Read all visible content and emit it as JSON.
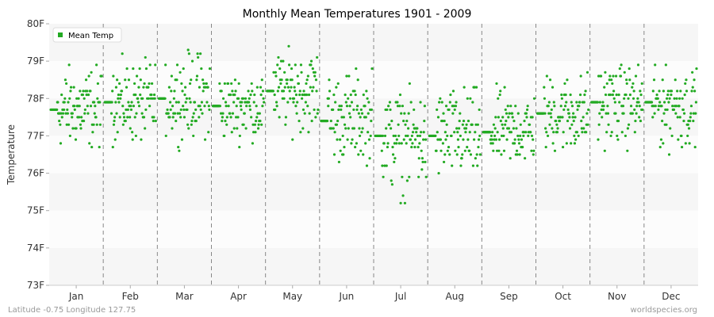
{
  "chart_data": {
    "type": "scatter",
    "title": "Monthly Mean Temperatures 1901 - 2009",
    "ylabel": "Temperature",
    "xlabel": "",
    "categories": [
      "Jan",
      "Feb",
      "Mar",
      "Apr",
      "May",
      "Jun",
      "Jul",
      "Aug",
      "Sep",
      "Oct",
      "Nov",
      "Dec"
    ],
    "y_ticks": [
      {
        "value": 73,
        "label": "73F"
      },
      {
        "value": 74,
        "label": "74F"
      },
      {
        "value": 75,
        "label": "75F"
      },
      {
        "value": 76,
        "label": "76F"
      },
      {
        "value": 77,
        "label": "77F"
      },
      {
        "value": 78,
        "label": "78F"
      },
      {
        "value": 79,
        "label": "79F"
      },
      {
        "value": 80,
        "label": "80F"
      }
    ],
    "ylim": [
      73,
      80
    ],
    "grid": "alternating horizontal bands, dashed month separators",
    "legend": {
      "label": "Mean Temp",
      "placement": "top-left"
    },
    "series": [
      {
        "name": "Mean Temp",
        "color": "#22aa22",
        "n_years": 109,
        "monthly_stats": [
          {
            "month": "Jan",
            "mean": 77.7,
            "min": 76.3,
            "max": 79.3
          },
          {
            "month": "Feb",
            "mean": 77.9,
            "min": 76.3,
            "max": 79.4
          },
          {
            "month": "Mar",
            "mean": 78.0,
            "min": 76.5,
            "max": 79.7
          },
          {
            "month": "Apr",
            "mean": 77.8,
            "min": 76.5,
            "max": 79.0
          },
          {
            "month": "May",
            "mean": 78.2,
            "min": 76.7,
            "max": 79.7
          },
          {
            "month": "Jun",
            "mean": 77.4,
            "min": 75.9,
            "max": 79.3
          },
          {
            "month": "Jul",
            "mean": 77.0,
            "min": 74.8,
            "max": 78.6
          },
          {
            "month": "Aug",
            "mean": 77.0,
            "min": 75.4,
            "max": 78.8
          },
          {
            "month": "Sep",
            "mean": 77.1,
            "min": 75.9,
            "max": 78.7
          },
          {
            "month": "Oct",
            "mean": 77.6,
            "min": 76.1,
            "max": 79.1
          },
          {
            "month": "Nov",
            "mean": 77.9,
            "min": 76.3,
            "max": 79.3
          },
          {
            "month": "Dec",
            "mean": 77.9,
            "min": 76.1,
            "max": 79.1
          }
        ]
      }
    ]
  },
  "footer": {
    "location": "Latitude -0.75 Longitude 127.75",
    "source": "worldspecies.org"
  }
}
